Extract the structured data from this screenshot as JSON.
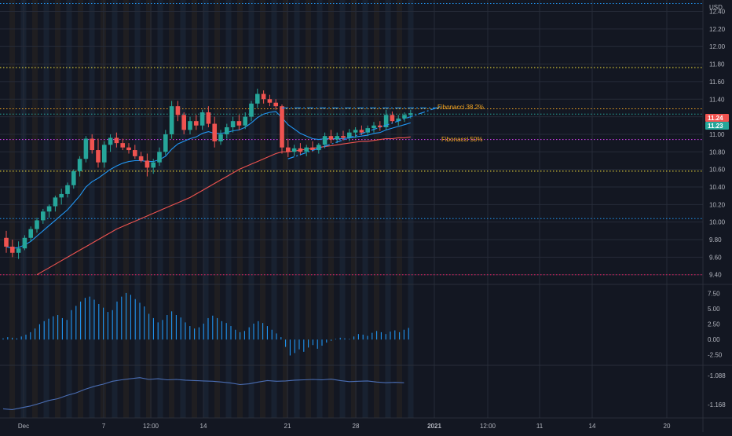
{
  "chart_data": [
    {
      "type": "candlestick",
      "currency": "USD",
      "y_ticks": [
        "12.40",
        "12.20",
        "12.00",
        "11.80",
        "11.60",
        "11.40",
        "11.20",
        "11.00",
        "10.80",
        "10.60",
        "10.40",
        "10.20",
        "10.00",
        "9.80",
        "9.60",
        "9.40"
      ],
      "ylim": [
        9.29,
        12.53
      ],
      "x_tick_labels": [
        "Dec",
        "7",
        "12:00",
        "14",
        "21",
        "28",
        "2021",
        "12:00",
        "11",
        "14",
        "20"
      ],
      "last_price_badges": [
        {
          "value": "11.24",
          "color": "#ef5350"
        },
        {
          "value": "11.23",
          "color": "#26a69a"
        }
      ],
      "horizontal_levels": [
        {
          "price": 12.49,
          "color": "#2196f3"
        },
        {
          "price": 11.76,
          "color": "#ffeb3b"
        },
        {
          "price": 11.29,
          "color": "#f5a623"
        },
        {
          "price": 11.23,
          "color": "#26a69a"
        },
        {
          "price": 10.94,
          "color": "#e040fb"
        },
        {
          "price": 10.58,
          "color": "#ffeb3b"
        },
        {
          "price": 10.04,
          "color": "#2196f3"
        },
        {
          "price": 9.4,
          "color": "#e91e63"
        }
      ],
      "annotations": [
        {
          "label": "Fibonacci 38.2%",
          "color": "#f5a623"
        },
        {
          "label": "Fibonacci 50%",
          "color": "#f5a623"
        }
      ],
      "candles": [
        [
          9.82,
          9.9,
          9.65,
          9.72
        ],
        [
          9.72,
          9.8,
          9.6,
          9.65
        ],
        [
          9.65,
          9.78,
          9.58,
          9.7
        ],
        [
          9.7,
          9.85,
          9.68,
          9.82
        ],
        [
          9.82,
          9.95,
          9.78,
          9.92
        ],
        [
          9.92,
          10.05,
          9.88,
          10.02
        ],
        [
          10.02,
          10.15,
          9.98,
          10.12
        ],
        [
          10.12,
          10.2,
          10.05,
          10.18
        ],
        [
          10.18,
          10.3,
          10.12,
          10.28
        ],
        [
          10.28,
          10.38,
          10.2,
          10.32
        ],
        [
          10.32,
          10.45,
          10.28,
          10.42
        ],
        [
          10.42,
          10.6,
          10.38,
          10.58
        ],
        [
          10.58,
          10.75,
          10.52,
          10.72
        ],
        [
          10.72,
          10.98,
          10.68,
          10.95
        ],
        [
          10.95,
          11.0,
          10.78,
          10.82
        ],
        [
          10.82,
          10.95,
          10.62,
          10.68
        ],
        [
          10.68,
          10.92,
          10.62,
          10.88
        ],
        [
          10.88,
          11.0,
          10.8,
          10.96
        ],
        [
          10.96,
          11.02,
          10.85,
          10.9
        ],
        [
          10.9,
          10.95,
          10.82,
          10.85
        ],
        [
          10.85,
          10.9,
          10.78,
          10.82
        ],
        [
          10.82,
          10.88,
          10.72,
          10.75
        ],
        [
          10.75,
          10.8,
          10.68,
          10.7
        ],
        [
          10.7,
          10.78,
          10.52,
          10.62
        ],
        [
          10.62,
          10.72,
          10.55,
          10.68
        ],
        [
          10.68,
          10.85,
          10.64,
          10.8
        ],
        [
          10.8,
          11.05,
          10.76,
          11.0
        ],
        [
          11.0,
          11.38,
          10.95,
          11.32
        ],
        [
          11.32,
          11.38,
          11.15,
          11.22
        ],
        [
          11.22,
          11.25,
          11.0,
          11.05
        ],
        [
          11.05,
          11.2,
          11.0,
          11.15
        ],
        [
          11.15,
          11.22,
          11.05,
          11.1
        ],
        [
          11.1,
          11.28,
          11.05,
          11.25
        ],
        [
          11.25,
          11.32,
          11.08,
          11.12
        ],
        [
          11.12,
          11.2,
          10.85,
          10.92
        ],
        [
          10.92,
          11.05,
          10.88,
          11.0
        ],
        [
          11.0,
          11.12,
          10.95,
          11.08
        ],
        [
          11.08,
          11.2,
          11.02,
          11.15
        ],
        [
          11.15,
          11.22,
          11.05,
          11.1
        ],
        [
          11.1,
          11.25,
          11.06,
          11.2
        ],
        [
          11.2,
          11.38,
          11.15,
          11.35
        ],
        [
          11.35,
          11.52,
          11.3,
          11.46
        ],
        [
          11.46,
          11.5,
          11.35,
          11.4
        ],
        [
          11.4,
          11.45,
          11.32,
          11.36
        ],
        [
          11.36,
          11.4,
          11.28,
          11.32
        ],
        [
          11.32,
          11.34,
          10.78,
          10.85
        ],
        [
          10.85,
          10.95,
          10.74,
          10.8
        ],
        [
          10.8,
          10.88,
          10.75,
          10.84
        ],
        [
          10.84,
          10.9,
          10.76,
          10.8
        ],
        [
          10.8,
          10.88,
          10.75,
          10.85
        ],
        [
          10.85,
          10.92,
          10.8,
          10.82
        ],
        [
          10.82,
          10.9,
          10.78,
          10.88
        ],
        [
          10.88,
          11.02,
          10.84,
          10.98
        ],
        [
          10.98,
          11.05,
          10.9,
          10.94
        ],
        [
          10.94,
          11.02,
          10.9,
          10.98
        ],
        [
          10.98,
          11.04,
          10.93,
          10.96
        ],
        [
          10.96,
          11.06,
          10.92,
          11.02
        ],
        [
          11.02,
          11.08,
          10.96,
          11.05
        ],
        [
          11.05,
          11.1,
          10.99,
          11.02
        ],
        [
          11.02,
          11.1,
          10.98,
          11.07
        ],
        [
          11.07,
          11.14,
          11.02,
          11.1
        ],
        [
          11.1,
          11.15,
          11.04,
          11.08
        ],
        [
          11.08,
          11.28,
          11.05,
          11.22
        ],
        [
          11.22,
          11.26,
          11.12,
          11.15
        ],
        [
          11.15,
          11.22,
          11.1,
          11.18
        ],
        [
          11.18,
          11.25,
          11.14,
          11.22
        ],
        [
          11.22,
          11.28,
          11.18,
          11.24
        ]
      ],
      "ema_fast": [
        9.72,
        9.7,
        9.71,
        9.74,
        9.78,
        9.84,
        9.9,
        9.96,
        10.02,
        10.08,
        10.14,
        10.22,
        10.3,
        10.4,
        10.46,
        10.5,
        10.55,
        10.6,
        10.64,
        10.67,
        10.69,
        10.7,
        10.7,
        10.69,
        10.69,
        10.71,
        10.75,
        10.83,
        10.89,
        10.92,
        10.95,
        10.97,
        11.01,
        11.03,
        11.01,
        11.01,
        11.02,
        11.04,
        11.05,
        11.08,
        11.13,
        11.19,
        11.23,
        11.25,
        11.26,
        11.19,
        11.11,
        11.06,
        11.01,
        10.98,
        10.95,
        10.94,
        10.95,
        10.95,
        10.95,
        10.95,
        10.96,
        10.97,
        10.98,
        10.99,
        11.01,
        11.02,
        11.05,
        11.07,
        11.09,
        11.11,
        11.13
      ],
      "sma_slow_start_index": 5,
      "sma_slow": [
        9.4,
        9.44,
        9.48,
        9.52,
        9.56,
        9.6,
        9.64,
        9.68,
        9.72,
        9.76,
        9.8,
        9.84,
        9.88,
        9.92,
        9.95,
        9.98,
        10.01,
        10.04,
        10.07,
        10.1,
        10.13,
        10.16,
        10.19,
        10.22,
        10.25,
        10.28,
        10.32,
        10.36,
        10.4,
        10.44,
        10.48,
        10.52,
        10.56,
        10.6,
        10.63,
        10.66,
        10.69,
        10.72,
        10.75,
        10.78,
        10.8,
        10.8,
        10.81,
        10.82,
        10.83,
        10.84,
        10.85,
        10.86,
        10.87,
        10.88,
        10.89,
        10.9,
        10.91,
        10.92,
        10.92,
        10.93,
        10.94,
        10.95,
        10.95,
        10.96,
        10.96,
        10.97
      ],
      "triangle_upper": {
        "from": [
          45,
          11.3
        ],
        "to": [
          71,
          11.3
        ]
      },
      "triangle_lower": {
        "from": [
          46,
          10.72
        ],
        "to": [
          71,
          11.32
        ]
      }
    },
    {
      "type": "bar",
      "y_ticks": [
        "7.50",
        "5.00",
        "2.50",
        "0.00",
        "-2.50"
      ],
      "ylim": [
        -4.2,
        9.0
      ],
      "values": [
        0.2,
        0.4,
        0.3,
        0.2,
        0.5,
        0.8,
        1.2,
        1.8,
        2.5,
        3.0,
        3.4,
        3.8,
        4.0,
        3.5,
        3.2,
        4.8,
        5.5,
        6.2,
        6.8,
        7.0,
        6.5,
        5.8,
        5.2,
        4.5,
        4.8,
        6.2,
        7.0,
        7.6,
        7.3,
        6.6,
        6.0,
        5.4,
        4.2,
        3.5,
        2.8,
        3.2,
        4.0,
        4.6,
        4.0,
        3.6,
        2.8,
        2.2,
        1.8,
        2.0,
        2.6,
        3.5,
        3.9,
        3.5,
        3.0,
        2.7,
        2.2,
        1.6,
        1.2,
        1.4,
        2.0,
        2.6,
        3.0,
        2.7,
        2.2,
        1.6,
        1.0,
        0.4,
        -1.2,
        -2.6,
        -2.2,
        -1.6,
        -2.0,
        -1.3,
        -0.9,
        -1.5,
        -1.0,
        -0.5,
        -0.2,
        0.1,
        0.3,
        0.2,
        0.1,
        0.5,
        0.9,
        0.8,
        0.6,
        1.1,
        1.4,
        1.2,
        0.9,
        1.3,
        1.5,
        1.2,
        1.6,
        1.9
      ]
    },
    {
      "type": "line",
      "y_ticks": [
        "-1.088",
        "-1.168"
      ],
      "ylim": [
        -1.205,
        -1.06
      ],
      "values": [
        -1.18,
        -1.182,
        -1.177,
        -1.172,
        -1.165,
        -1.157,
        -1.152,
        -1.143,
        -1.136,
        -1.126,
        -1.118,
        -1.112,
        -1.104,
        -1.1,
        -1.097,
        -1.094,
        -1.099,
        -1.097,
        -1.1,
        -1.099,
        -1.101,
        -1.102,
        -1.103,
        -1.104,
        -1.106,
        -1.109,
        -1.113,
        -1.111,
        -1.106,
        -1.102,
        -1.104,
        -1.103,
        -1.101,
        -1.1,
        -1.099,
        -1.1,
        -1.098,
        -1.102,
        -1.105,
        -1.104,
        -1.103,
        -1.106,
        -1.108,
        -1.107,
        -1.108
      ]
    }
  ]
}
